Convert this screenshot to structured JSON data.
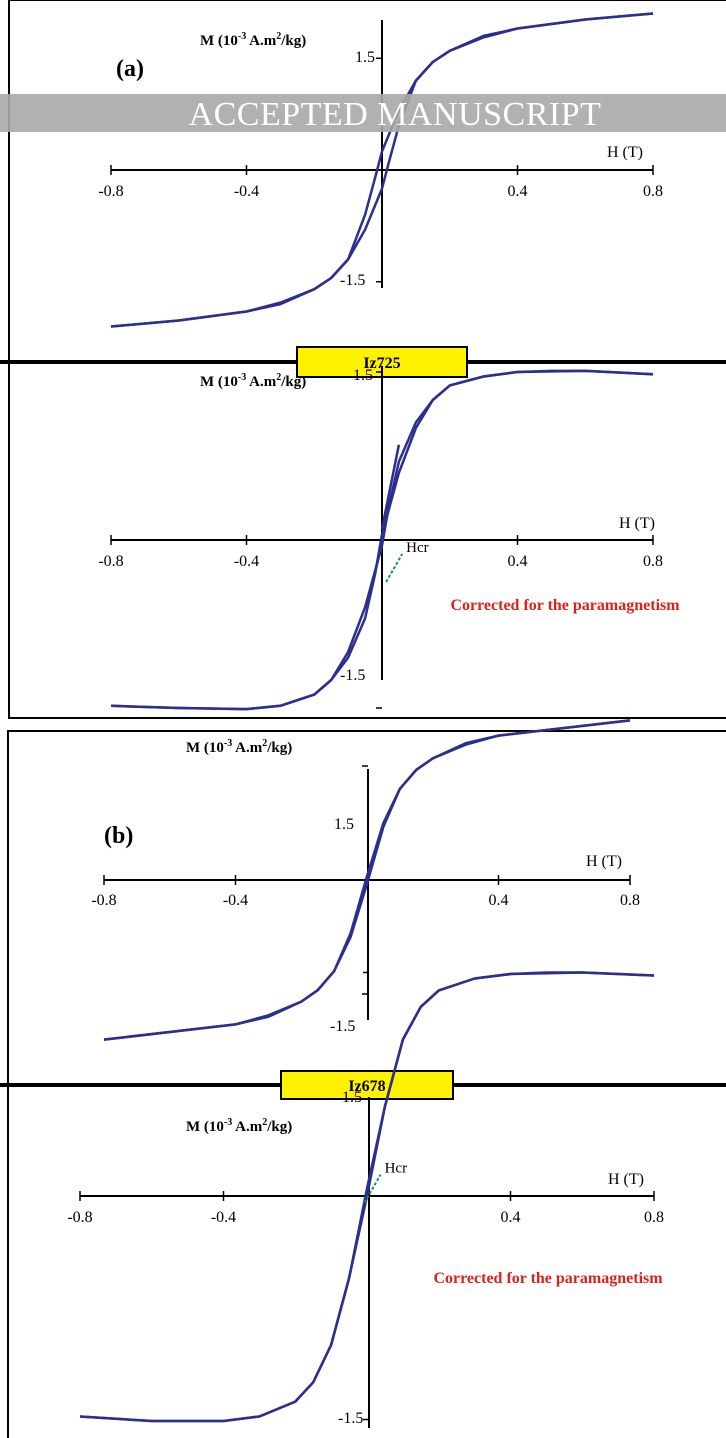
{
  "watermark": "ACCEPTED MANUSCRIPT",
  "colors": {
    "curve": "#2b2f8e",
    "hcr_line": "#1f8f5a",
    "note": "#e0201b",
    "label_box": "#fff200",
    "watermark_band": "#a9a9a9"
  },
  "groups": [
    {
      "letter": "(a)",
      "sample": "Iz725",
      "top_note": "",
      "bottom_note": "Corrected for the paramagnetism"
    },
    {
      "letter": "(b)",
      "sample": "Iz678",
      "top_note": "",
      "bottom_note": "Corrected for the paramagnetism"
    }
  ],
  "chart_data": [
    {
      "id": "a-raw",
      "type": "line",
      "ylabel_parts": [
        "M (10",
        "-3",
        " A.m",
        "2",
        "/kg)"
      ],
      "xlabel": "H (T)",
      "x_ticks": [
        "-0.8",
        "-0.4",
        "0.4",
        "0.8"
      ],
      "y_ticks": [
        "1.5",
        "-1.5"
      ],
      "xlim": [
        -0.8,
        0.8
      ],
      "series": [
        {
          "x": [
            -0.8,
            -0.6,
            -0.4,
            -0.3,
            -0.2,
            -0.15,
            -0.1,
            -0.05,
            0.0,
            0.02,
            0.05,
            0.1,
            0.15,
            0.2,
            0.3,
            0.4,
            0.6,
            0.8
          ],
          "y": [
            -2.1,
            -2.02,
            -1.9,
            -1.8,
            -1.6,
            -1.45,
            -1.2,
            -0.8,
            -0.25,
            0.1,
            0.6,
            1.2,
            1.45,
            1.6,
            1.78,
            1.9,
            2.02,
            2.1
          ]
        },
        {
          "x": [
            0.8,
            0.6,
            0.4,
            0.3,
            0.2,
            0.15,
            0.1,
            0.05,
            0.0,
            -0.02,
            -0.05,
            -0.1,
            -0.15,
            -0.2,
            -0.3,
            -0.4,
            -0.6,
            -0.8
          ],
          "y": [
            2.1,
            2.02,
            1.9,
            1.8,
            1.6,
            1.45,
            1.2,
            0.8,
            0.25,
            -0.1,
            -0.6,
            -1.2,
            -1.45,
            -1.6,
            -1.78,
            -1.9,
            -2.02,
            -2.1
          ]
        }
      ],
      "hcr": null
    },
    {
      "id": "a-corrected",
      "type": "line",
      "ylabel_parts": [
        "M (10",
        "-3",
        " A.m",
        "2",
        "/kg)"
      ],
      "xlabel": "H (T)",
      "x_ticks": [
        "-0.8",
        "-0.4",
        "0.4",
        "0.8"
      ],
      "y_ticks": [
        "1.5",
        "-1.5"
      ],
      "xlim": [
        -0.8,
        0.8
      ],
      "note": "Corrected for the paramagnetism",
      "series": [
        {
          "x": [
            -0.8,
            -0.6,
            -0.4,
            -0.3,
            -0.2,
            -0.15,
            -0.1,
            -0.05,
            0.0,
            0.02,
            0.05,
            0.1,
            0.15,
            0.2,
            0.3,
            0.4,
            0.5,
            0.6,
            0.8
          ],
          "y": [
            -1.48,
            -1.5,
            -1.51,
            -1.48,
            -1.38,
            -1.25,
            -1.0,
            -0.6,
            -0.05,
            0.3,
            0.7,
            1.05,
            1.25,
            1.38,
            1.46,
            1.5,
            1.51,
            1.51,
            1.48
          ]
        },
        {
          "x": [
            0.8,
            0.6,
            0.4,
            0.3,
            0.2,
            0.15,
            0.1,
            0.05,
            0.0,
            -0.02,
            -0.05,
            -0.1,
            -0.15,
            -0.2,
            -0.3,
            -0.4,
            -0.6,
            -0.8
          ],
          "y": [
            1.48,
            1.51,
            1.5,
            1.46,
            1.38,
            1.25,
            1.0,
            0.6,
            0.05,
            -0.3,
            -0.7,
            -1.05,
            -1.25,
            -1.38,
            -1.48,
            -1.51,
            -1.5,
            -1.48
          ]
        }
      ],
      "extra_segment": {
        "x": [
          0.0,
          0.05
        ],
        "y": [
          0.1,
          0.85
        ]
      },
      "hcr": {
        "label": "Hcr",
        "x": 0.03,
        "y": -0.25
      }
    },
    {
      "id": "b-raw",
      "type": "line",
      "ylabel_parts": [
        "M (10",
        "-3",
        " A.m",
        "2",
        "/kg)"
      ],
      "xlabel": "H (T)",
      "x_ticks": [
        "-0.8",
        "-0.4",
        "0.4",
        "0.8"
      ],
      "y_ticks": [
        "1.5",
        "-1.5"
      ],
      "xlim": [
        -0.8,
        0.8
      ],
      "series": [
        {
          "x": [
            -0.8,
            -0.6,
            -0.4,
            -0.3,
            -0.2,
            -0.15,
            -0.1,
            -0.05,
            0.0,
            0.05,
            0.1,
            0.15,
            0.2,
            0.3,
            0.4,
            0.6,
            0.8
          ],
          "y": [
            -2.1,
            -2.0,
            -1.9,
            -1.8,
            -1.6,
            -1.45,
            -1.2,
            -0.75,
            -0.05,
            0.7,
            1.2,
            1.45,
            1.6,
            1.78,
            1.9,
            2.0,
            2.1
          ]
        },
        {
          "x": [
            0.8,
            0.6,
            0.4,
            0.3,
            0.2,
            0.15,
            0.1,
            0.05,
            0.0,
            -0.05,
            -0.1,
            -0.15,
            -0.2,
            -0.3,
            -0.4,
            -0.6,
            -0.8
          ],
          "y": [
            2.1,
            2.0,
            1.9,
            1.8,
            1.6,
            1.45,
            1.2,
            0.75,
            0.05,
            -0.7,
            -1.2,
            -1.45,
            -1.6,
            -1.78,
            -1.9,
            -2.0,
            -2.1
          ]
        }
      ],
      "hcr": null
    },
    {
      "id": "b-corrected",
      "type": "line",
      "ylabel_parts": [
        "M (10",
        "-3",
        " A.m",
        "2",
        "/kg)"
      ],
      "xlabel": "H (T)",
      "x_ticks": [
        "-0.8",
        "-0.4",
        "0.4",
        "0.8"
      ],
      "y_ticks": [
        "1.5",
        "-1.5"
      ],
      "xlim": [
        -0.8,
        0.8
      ],
      "note": "Corrected for the paramagnetism",
      "series": [
        {
          "x": [
            -0.8,
            -0.6,
            -0.4,
            -0.3,
            -0.2,
            -0.15,
            -0.1,
            -0.05,
            0.0,
            0.05,
            0.1,
            0.15,
            0.2,
            0.3,
            0.4,
            0.5,
            0.6,
            0.8
          ],
          "y": [
            -1.48,
            -1.51,
            -1.51,
            -1.48,
            -1.38,
            -1.25,
            -1.0,
            -0.55,
            0.0,
            0.6,
            1.05,
            1.27,
            1.38,
            1.46,
            1.49,
            1.5,
            1.5,
            1.48
          ]
        },
        {
          "x": [
            0.8,
            0.6,
            0.4,
            0.3,
            0.2,
            0.15,
            0.1,
            0.05,
            0.0,
            -0.05,
            -0.1,
            -0.15,
            -0.2,
            -0.3,
            -0.4,
            -0.6,
            -0.8
          ],
          "y": [
            1.48,
            1.5,
            1.49,
            1.46,
            1.38,
            1.27,
            1.05,
            0.6,
            0.05,
            -0.55,
            -1.0,
            -1.25,
            -1.38,
            -1.48,
            -1.51,
            -1.51,
            -1.48
          ]
        }
      ],
      "hcr": {
        "label": "Hcr",
        "x": 0.01,
        "y": 0.05
      }
    }
  ]
}
